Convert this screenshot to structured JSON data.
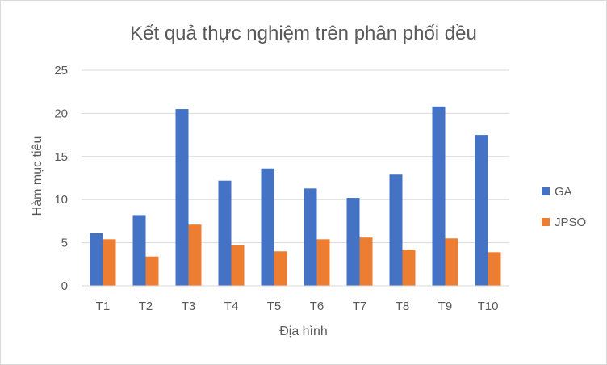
{
  "chart_data": {
    "type": "bar",
    "title": "Kết quả thực nghiệm trên phân phối đều",
    "xlabel": "Địa hình",
    "ylabel": "Hàm mục tiêu",
    "categories": [
      "T1",
      "T2",
      "T3",
      "T4",
      "T5",
      "T6",
      "T7",
      "T8",
      "T9",
      "T10"
    ],
    "ylim": [
      0,
      25
    ],
    "yticks": [
      "0",
      "5",
      "10",
      "15",
      "20",
      "25"
    ],
    "grid": true,
    "legend_position": "right",
    "series": [
      {
        "name": "GA",
        "color": "#4472C4",
        "values": [
          6.1,
          8.2,
          20.5,
          12.2,
          13.6,
          11.3,
          10.2,
          12.9,
          20.8,
          17.5
        ]
      },
      {
        "name": "JPSO",
        "color": "#ED7D31",
        "values": [
          5.4,
          3.4,
          7.1,
          4.7,
          4.0,
          5.4,
          5.6,
          4.2,
          5.5,
          3.9
        ]
      }
    ]
  }
}
